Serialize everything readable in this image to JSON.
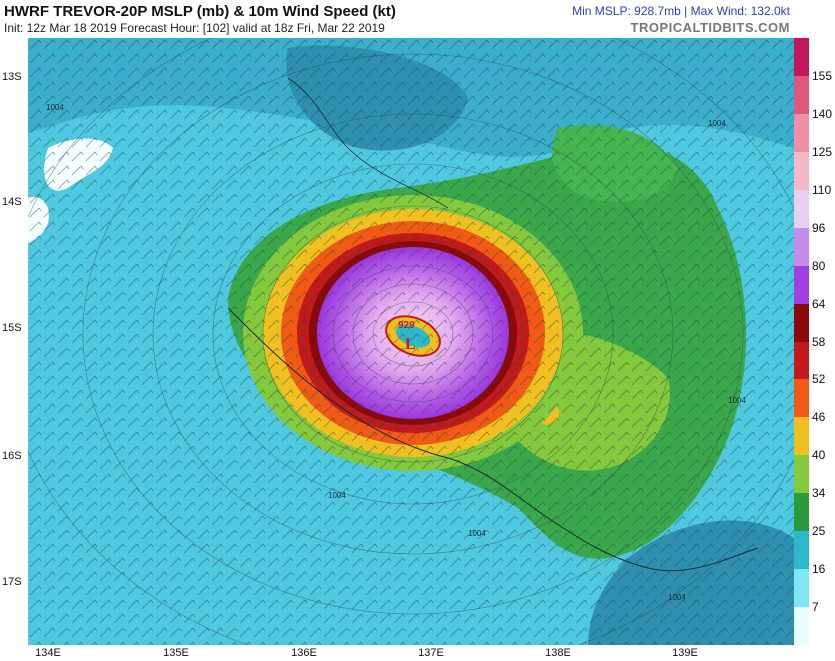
{
  "header": {
    "title": "HWRF TREVOR-20P MSLP (mb) & 10m Wind Speed (kt)",
    "init_line": "Init: 12z Mar 18 2019   Forecast Hour: [102]   valid at 18z Fri, Mar 22 2019",
    "min_max": "Min MSLP: 928.7mb | Max Wind: 132.0kt",
    "brand": "TROPICALTIDBITS.COM"
  },
  "map": {
    "lat_labels": [
      "13S",
      "14S",
      "15S",
      "16S",
      "17S"
    ],
    "lon_labels": [
      "134E",
      "135E",
      "136E",
      "137E",
      "138E",
      "139E"
    ],
    "center_pressure": "929",
    "low_marker": "L",
    "contour_labels": [
      "1004",
      "1004",
      "1004",
      "1004",
      "1004",
      "1004"
    ]
  },
  "colorbar": {
    "labels": [
      "155",
      "140",
      "125",
      "110",
      "96",
      "80",
      "64",
      "58",
      "52",
      "46",
      "40",
      "34",
      "25",
      "16",
      "7"
    ],
    "colors": [
      "#c2185b",
      "#e0577c",
      "#ee8fa6",
      "#f4b9c8",
      "#e6cff0",
      "#c58be8",
      "#a040e0",
      "#8a0a0a",
      "#c61a1a",
      "#f05a14",
      "#f0c020",
      "#84c83c",
      "#2a9a3a",
      "#2bb8c8",
      "#7fe6f4",
      "#e8fbff"
    ]
  },
  "colors": {
    "ocean": "#4ec8df",
    "deep": "#2f8fae",
    "land": "#f4fdff",
    "gale": "#3aa84a",
    "storm": "#c61a1a",
    "hurricane": "#a040e0"
  }
}
